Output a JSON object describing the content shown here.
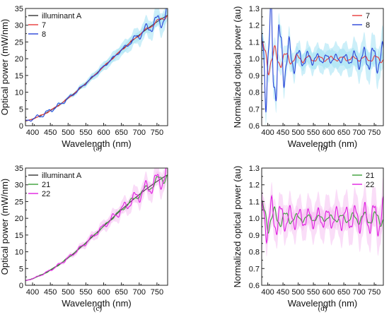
{
  "chart_data": [
    {
      "id": "a",
      "type": "line",
      "panel_label": "(a)",
      "xlabel": "Wavelength (nm)",
      "ylabel": "Optical power (mW/nm)",
      "xlim": [
        380,
        780
      ],
      "ylim": [
        0,
        35
      ],
      "xticks": [
        400,
        450,
        500,
        550,
        600,
        650,
        700,
        750
      ],
      "yticks": [
        0,
        5,
        10,
        15,
        20,
        25,
        30,
        35
      ],
      "y_tick_suffix": "",
      "legend": {
        "placement": "top-left"
      },
      "reference": {
        "name": "illuminant A",
        "color": "#333333"
      },
      "band_color": "#8fdcf2",
      "series": [
        {
          "name": "7",
          "color": "#e83a3a",
          "osc": [
            [
              380,
              0.06
            ],
            [
              500,
              0.018
            ],
            [
              600,
              0.008
            ],
            [
              700,
              0.01
            ],
            [
              780,
              0.02
            ]
          ],
          "band": [
            [
              380,
              0.05
            ],
            [
              780,
              0.05
            ]
          ]
        },
        {
          "name": "8",
          "color": "#2a45d8",
          "osc": [
            [
              380,
              0.2
            ],
            [
              420,
              0.22
            ],
            [
              450,
              0.12
            ],
            [
              500,
              0.05
            ],
            [
              560,
              0.02
            ],
            [
              650,
              0.015
            ],
            [
              700,
              0.04
            ],
            [
              780,
              0.08
            ]
          ],
          "band": [
            [
              380,
              0.08
            ],
            [
              500,
              0.06
            ],
            [
              780,
              0.1
            ]
          ]
        }
      ]
    },
    {
      "id": "b",
      "type": "line",
      "panel_label": "(b)",
      "xlabel": "Wavelength (nm)",
      "ylabel": "Normalized optical power (au)",
      "xlim": [
        380,
        780
      ],
      "ylim": [
        0.6,
        1.3
      ],
      "xticks": [
        400,
        450,
        500,
        550,
        600,
        650,
        700,
        750
      ],
      "yticks": [
        0.6,
        0.7,
        0.8,
        0.9,
        1.0,
        1.1,
        1.2,
        1.3
      ],
      "legend": {
        "placement": "top-right"
      },
      "band_color": "#8fdcf2",
      "series": [
        {
          "name": "7",
          "color": "#e83a3a",
          "osc": [
            [
              380,
              0.1
            ],
            [
              400,
              0.08
            ],
            [
              450,
              0.04
            ],
            [
              500,
              0.02
            ],
            [
              600,
              0.012
            ],
            [
              700,
              0.012
            ],
            [
              780,
              0.02
            ]
          ],
          "band": [
            [
              380,
              0.05
            ],
            [
              780,
              0.05
            ]
          ]
        },
        {
          "name": "8",
          "color": "#2a45d8",
          "osc": [
            [
              380,
              0.2
            ],
            [
              410,
              0.31
            ],
            [
              430,
              0.24
            ],
            [
              460,
              0.12
            ],
            [
              500,
              0.05
            ],
            [
              560,
              0.025
            ],
            [
              650,
              0.02
            ],
            [
              700,
              0.05
            ],
            [
              780,
              0.08
            ]
          ],
          "band": [
            [
              380,
              0.08
            ],
            [
              500,
              0.06
            ],
            [
              780,
              0.1
            ]
          ]
        }
      ]
    },
    {
      "id": "c",
      "type": "line",
      "panel_label": "(c)",
      "xlabel": "Wavelength (nm)",
      "ylabel": "Optical power (mW/nm)",
      "xlim": [
        380,
        780
      ],
      "ylim": [
        0,
        35
      ],
      "xticks": [
        400,
        450,
        500,
        550,
        600,
        650,
        700,
        750
      ],
      "yticks": [
        0,
        5,
        10,
        15,
        20,
        25,
        30,
        35
      ],
      "legend": {
        "placement": "top-left"
      },
      "reference": {
        "name": "illuminant A",
        "color": "#333333"
      },
      "band_color": "#f3b3ef",
      "series": [
        {
          "name": "21",
          "color": "#3aa037",
          "osc": [
            [
              380,
              0.05
            ],
            [
              500,
              0.02
            ],
            [
              600,
              0.012
            ],
            [
              700,
              0.03
            ],
            [
              780,
              0.05
            ]
          ],
          "band": [
            [
              380,
              0.05
            ],
            [
              780,
              0.05
            ]
          ]
        },
        {
          "name": "22",
          "color": "#e020e0",
          "osc": [
            [
              380,
              0.06
            ],
            [
              500,
              0.05
            ],
            [
              600,
              0.04
            ],
            [
              700,
              0.07
            ],
            [
              780,
              0.09
            ]
          ],
          "band": [
            [
              380,
              0.07
            ],
            [
              780,
              0.1
            ]
          ]
        }
      ]
    },
    {
      "id": "d",
      "type": "line",
      "panel_label": "(d)",
      "xlabel": "Wavelength (nm)",
      "ylabel": "Normalized optical power (au)",
      "xlim": [
        380,
        780
      ],
      "ylim": [
        0.6,
        1.3
      ],
      "xticks": [
        400,
        450,
        500,
        550,
        600,
        650,
        700,
        750
      ],
      "yticks": [
        0.6,
        0.7,
        0.8,
        0.9,
        1.0,
        1.1,
        1.2,
        1.3
      ],
      "legend": {
        "placement": "top-right"
      },
      "band_color": "#f3b3ef",
      "series": [
        {
          "name": "21",
          "color": "#3aa037",
          "osc": [
            [
              380,
              0.1
            ],
            [
              410,
              0.06
            ],
            [
              450,
              0.04
            ],
            [
              500,
              0.02
            ],
            [
              600,
              0.015
            ],
            [
              700,
              0.03
            ],
            [
              780,
              0.04
            ]
          ],
          "band": [
            [
              380,
              0.05
            ],
            [
              780,
              0.05
            ]
          ]
        },
        {
          "name": "22",
          "color": "#e020e0",
          "osc": [
            [
              380,
              0.1
            ],
            [
              400,
              0.12
            ],
            [
              450,
              0.07
            ],
            [
              500,
              0.05
            ],
            [
              600,
              0.05
            ],
            [
              700,
              0.07
            ],
            [
              780,
              0.1
            ]
          ],
          "band": [
            [
              380,
              0.08
            ],
            [
              780,
              0.12
            ]
          ]
        }
      ]
    }
  ]
}
